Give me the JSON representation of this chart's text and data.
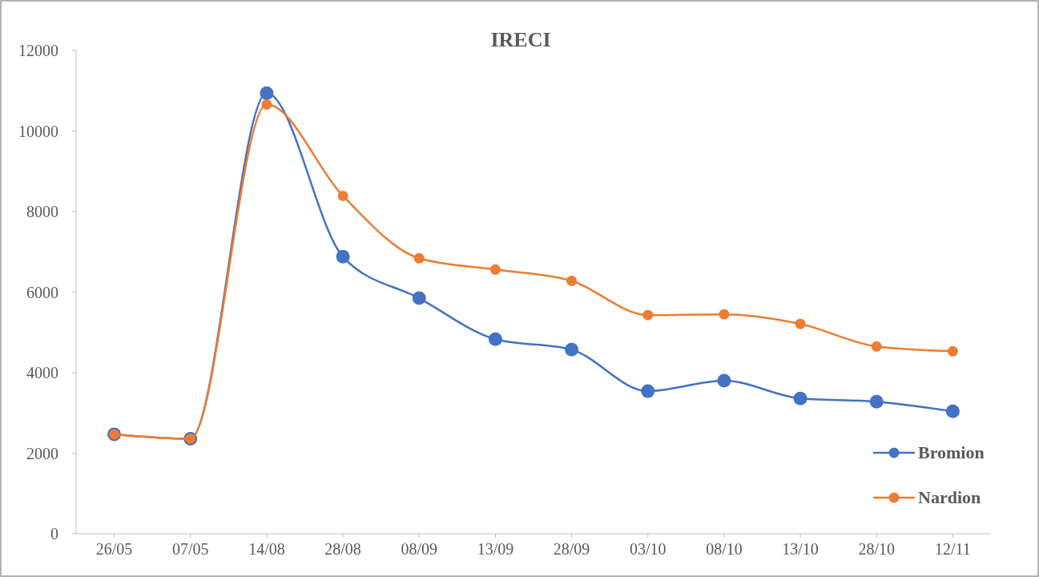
{
  "chart_data": {
    "type": "line",
    "title": "IRECI",
    "categories": [
      "26/05",
      "07/05",
      "14/08",
      "28/08",
      "08/09",
      "13/09",
      "28/09",
      "03/10",
      "08/10",
      "13/10",
      "28/10",
      "12/11"
    ],
    "ylim": [
      0,
      12000
    ],
    "yticks": [
      0,
      2000,
      4000,
      6000,
      8000,
      10000,
      12000
    ],
    "grid": false,
    "legend": "bottom right",
    "marker": "circle",
    "line_style": "solid",
    "series": [
      {
        "name": "Bromion",
        "color": "#4472c4",
        "values": [
          2470,
          2360,
          10940,
          6880,
          5850,
          4830,
          4570,
          3540,
          3800,
          3360,
          3280,
          3040
        ]
      },
      {
        "name": "Nardion",
        "color": "#ed7d31",
        "values": [
          2470,
          2360,
          10660,
          8390,
          6840,
          6560,
          6280,
          5430,
          5450,
          5210,
          4650,
          4530
        ]
      }
    ]
  }
}
